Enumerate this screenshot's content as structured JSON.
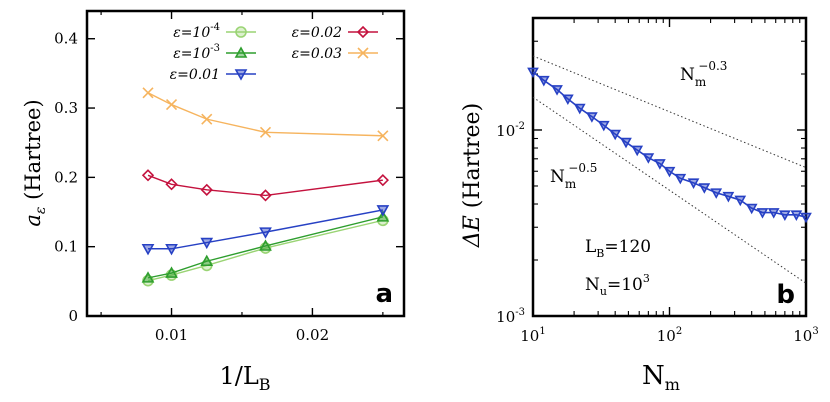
{
  "chart_data": [
    {
      "type": "line",
      "panel": "a",
      "ylabel": "a_ε (Hartree)",
      "ylabel_parts": {
        "symbol": "a",
        "sub": "ε",
        "unit": "(Hartree)"
      },
      "xlabel": "1/L_B",
      "xlabel_parts": {
        "main": "1/L",
        "sub": "B"
      },
      "xlim": [
        0.004,
        0.0265
      ],
      "ylim": [
        0,
        0.44
      ],
      "xticks": [
        0.01,
        0.02
      ],
      "xtick_labels": [
        "0.01",
        "0.02"
      ],
      "yticks": [
        0,
        0.1,
        0.2,
        0.3,
        0.4
      ],
      "ytick_labels": [
        "0",
        "0.1",
        "0.2",
        "0.3",
        "0.4"
      ],
      "x": [
        0.00833,
        0.01,
        0.0125,
        0.01667,
        0.025
      ],
      "series": [
        {
          "name": "ε=10^-4",
          "label_base": "ε=10",
          "label_exp": "-4",
          "color": "#9ad474",
          "marker": "circle",
          "values": [
            0.051,
            0.059,
            0.073,
            0.098,
            0.138
          ]
        },
        {
          "name": "ε=10^-3",
          "label_base": "ε=10",
          "label_exp": "-3",
          "color": "#2e9e2e",
          "marker": "triangle-up",
          "values": [
            0.055,
            0.062,
            0.079,
            0.101,
            0.143
          ]
        },
        {
          "name": "ε=0.01",
          "label_base": "ε=0.01",
          "label_exp": "",
          "color": "#2741c4",
          "marker": "triangle-down",
          "values": [
            0.097,
            0.097,
            0.106,
            0.121,
            0.153
          ]
        },
        {
          "name": "ε=0.02",
          "label_base": "ε=0.02",
          "label_exp": "",
          "color": "#c4123e",
          "marker": "diamond",
          "values": [
            0.203,
            0.19,
            0.182,
            0.174,
            0.196
          ]
        },
        {
          "name": "ε=0.03",
          "label_base": "ε=0.03",
          "label_exp": "",
          "color": "#f6b45e",
          "marker": "cross",
          "values": [
            0.322,
            0.305,
            0.284,
            0.265,
            0.26
          ]
        }
      ],
      "legend": "top"
    },
    {
      "type": "line",
      "panel": "b",
      "scale": "log-log",
      "ylabel": "ΔE (Hartree)",
      "ylabel_parts": {
        "symbol": "ΔE",
        "unit": "(Hartree)"
      },
      "xlabel": "N_m",
      "xlabel_parts": {
        "main": "N",
        "sub": "m"
      },
      "xlim": [
        10,
        1000
      ],
      "ylim": [
        0.001,
        0.04
      ],
      "xticks": [
        10,
        100,
        1000
      ],
      "xtick_labels": [
        {
          "base": "10",
          "exp": "1"
        },
        {
          "base": "10",
          "exp": "2"
        },
        {
          "base": "10",
          "exp": "3"
        }
      ],
      "yticks": [
        0.001,
        0.01
      ],
      "ytick_labels": [
        {
          "base": "10",
          "exp": "-3"
        },
        {
          "base": "10",
          "exp": "-2"
        }
      ],
      "series": [
        {
          "name": "ΔE",
          "color": "#2741c4",
          "marker": "triangle-down",
          "x": [
            10,
            12,
            15,
            18,
            22,
            27,
            33,
            40,
            48,
            58,
            70,
            85,
            100,
            120,
            150,
            180,
            220,
            270,
            330,
            400,
            480,
            580,
            700,
            850,
            1000
          ],
          "values": [
            0.0205,
            0.0185,
            0.0165,
            0.0147,
            0.0131,
            0.0118,
            0.0106,
            0.0095,
            0.0086,
            0.0078,
            0.0071,
            0.0066,
            0.006,
            0.0055,
            0.0052,
            0.0049,
            0.0046,
            0.0044,
            0.0042,
            0.0038,
            0.0036,
            0.0036,
            0.0035,
            0.0035,
            0.0034
          ]
        }
      ],
      "reference_lines": [
        {
          "label_base": "N",
          "label_sub": "m",
          "label_exp": "−0.3",
          "exponent": -0.3,
          "y_at_x10": 0.025,
          "style": "dotted"
        },
        {
          "label_base": "N",
          "label_sub": "m",
          "label_exp": "−0.5",
          "exponent": -0.5,
          "y_at_x10": 0.015,
          "style": "dotted"
        }
      ],
      "annotations": [
        {
          "base": "L",
          "sub": "B",
          "rel": "=",
          "value": "120",
          "exp": ""
        },
        {
          "base": "N",
          "sub": "u",
          "rel": "=",
          "value": "10",
          "exp": "3"
        }
      ]
    }
  ]
}
